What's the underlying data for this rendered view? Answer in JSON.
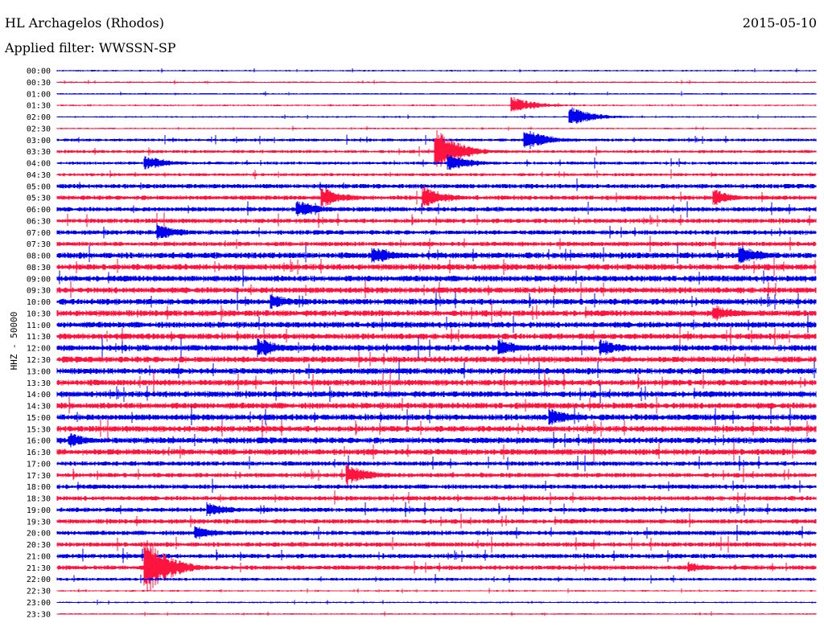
{
  "header": {
    "station": "HL Archagelos (Rhodos)",
    "date": "2015-05-10",
    "filter": "Applied filter: WWSSN-SP"
  },
  "channel_label": "HHZ - 50000",
  "colors": {
    "even_row": "#0000ee",
    "odd_row": "#ff1440",
    "text": "#000000"
  },
  "chart_data": {
    "type": "line",
    "title": "HL Archagelos (Rhodos)",
    "xlabel": "",
    "ylabel": "HHZ - 50000",
    "grid": false,
    "rows": [
      "00:00",
      "00:30",
      "01:00",
      "01:30",
      "02:00",
      "02:30",
      "03:00",
      "03:30",
      "04:00",
      "04:30",
      "05:00",
      "05:30",
      "06:00",
      "06:30",
      "07:00",
      "07:30",
      "08:00",
      "08:30",
      "09:00",
      "09:30",
      "10:00",
      "10:30",
      "11:00",
      "11:30",
      "12:00",
      "12:30",
      "13:00",
      "13:30",
      "14:00",
      "14:30",
      "15:00",
      "15:30",
      "16:00",
      "16:30",
      "17:00",
      "17:30",
      "18:00",
      "18:30",
      "19:00",
      "19:30",
      "20:00",
      "20:30",
      "21:00",
      "21:30",
      "22:00",
      "22:30",
      "23:00",
      "23:30"
    ],
    "row_span_minutes": 30,
    "row_noise": [
      1,
      1,
      1,
      1,
      1,
      1,
      2,
      2,
      2,
      2,
      3,
      3,
      3,
      3,
      3,
      3,
      4,
      4,
      4,
      4,
      4,
      4,
      4,
      4,
      4,
      4,
      4,
      4,
      4,
      4,
      4,
      4,
      4,
      4,
      3,
      3,
      3,
      3,
      3,
      3,
      3,
      3,
      3,
      3,
      2,
      1,
      1,
      1
    ],
    "events": [
      {
        "row": "03:00",
        "minute": 18.5,
        "amplitude": 15
      },
      {
        "row": "03:30",
        "minute": 15.0,
        "amplitude": 30
      },
      {
        "row": "02:00",
        "minute": 20.3,
        "amplitude": 13
      },
      {
        "row": "01:30",
        "minute": 18.0,
        "amplitude": 11
      },
      {
        "row": "04:00",
        "minute": 3.5,
        "amplitude": 10
      },
      {
        "row": "04:00",
        "minute": 15.5,
        "amplitude": 12
      },
      {
        "row": "05:30",
        "minute": 10.5,
        "amplitude": 14
      },
      {
        "row": "05:30",
        "minute": 14.5,
        "amplitude": 15
      },
      {
        "row": "05:30",
        "minute": 26.0,
        "amplitude": 11
      },
      {
        "row": "06:00",
        "minute": 9.5,
        "amplitude": 12
      },
      {
        "row": "07:00",
        "minute": 4.0,
        "amplitude": 12
      },
      {
        "row": "08:00",
        "minute": 12.5,
        "amplitude": 12
      },
      {
        "row": "08:00",
        "minute": 27.0,
        "amplitude": 14
      },
      {
        "row": "10:00",
        "minute": 8.5,
        "amplitude": 10
      },
      {
        "row": "10:30",
        "minute": 26.0,
        "amplitude": 11
      },
      {
        "row": "12:00",
        "minute": 8.0,
        "amplitude": 13
      },
      {
        "row": "12:00",
        "minute": 17.5,
        "amplitude": 12
      },
      {
        "row": "12:00",
        "minute": 21.5,
        "amplitude": 12
      },
      {
        "row": "15:00",
        "minute": 19.5,
        "amplitude": 12
      },
      {
        "row": "16:00",
        "minute": 0.5,
        "amplitude": 10
      },
      {
        "row": "17:30",
        "minute": 11.5,
        "amplitude": 14
      },
      {
        "row": "19:00",
        "minute": 6.0,
        "amplitude": 10
      },
      {
        "row": "20:00",
        "minute": 5.5,
        "amplitude": 9
      },
      {
        "row": "21:30",
        "minute": 3.5,
        "amplitude": 40
      },
      {
        "row": "21:30",
        "minute": 25.0,
        "amplitude": 7
      }
    ]
  }
}
